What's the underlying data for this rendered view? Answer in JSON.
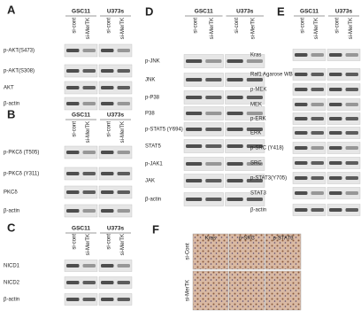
{
  "panels": [
    {
      "letter": "A",
      "groups": [
        "GSC11",
        "U373s"
      ],
      "lanes": [
        "si-cont",
        "si-MerTK",
        "si-cont",
        "si-MerTK"
      ],
      "rows": [
        "p-AKT(S473)",
        "p-AKT(S308)",
        "AKT",
        "β-actin"
      ]
    },
    {
      "letter": "B",
      "groups": [
        "GSC11",
        "U373s"
      ],
      "lanes": [
        "si-cont",
        "si-MerTK",
        "si-cont",
        "si-MerTK"
      ],
      "rows": [
        "p-PKCδ (T505)",
        "p-PKCδ (Y311)",
        "PKCδ",
        "β-actin"
      ]
    },
    {
      "letter": "C",
      "groups": [
        "GSC11",
        "U373s"
      ],
      "lanes": [
        "si-cont",
        "si-MerTK",
        "si-cont",
        "si-MerTK"
      ],
      "rows": [
        "NICD1",
        "NICD2",
        "β-actin"
      ]
    },
    {
      "letter": "D",
      "groups": [
        "GSC11",
        "U373s"
      ],
      "lanes": [
        "si-cont",
        "si-MerTK",
        "si-cont",
        "si-MerTK"
      ],
      "rows": [
        "p-JNK",
        "JNK",
        "p-P38",
        "P38",
        "p-STAT5 (Y694)",
        "STAT5",
        "p-JAK1",
        "JAK",
        "β-actin"
      ]
    },
    {
      "letter": "E",
      "groups": [
        "GSC11",
        "U373s"
      ],
      "lanes": [
        "si-cont",
        "si-MerTK",
        "si-cont",
        "si-MerTK"
      ],
      "rows": [
        "Kras",
        "Raf1 Agarose WB : Kras",
        "p-MEK",
        "MEK",
        "p-ERK",
        "ERK",
        "p-SRC (Y418)",
        "SRC",
        "p-STAT3(Y705)",
        "STAT3",
        "β-actin"
      ]
    }
  ],
  "histology": {
    "letter": "F",
    "columns": [
      "Kras",
      "p-SRC",
      "p-STAT3"
    ],
    "rows": [
      "si-Cont",
      "si-MerTK"
    ]
  }
}
